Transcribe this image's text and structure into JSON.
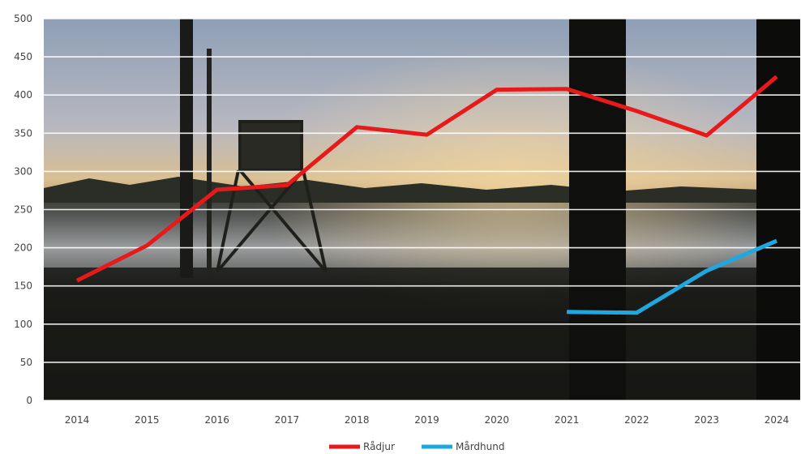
{
  "chart_data": {
    "type": "line",
    "title": "",
    "xlabel": "",
    "ylabel": "",
    "categories": [
      "2014",
      "2015",
      "2016",
      "2017",
      "2018",
      "2019",
      "2020",
      "2021",
      "2022",
      "2023",
      "2024"
    ],
    "ylim": [
      0,
      500
    ],
    "yticks": [
      0,
      50,
      100,
      150,
      200,
      250,
      300,
      350,
      400,
      450,
      500
    ],
    "grid": true,
    "legend_position": "bottom",
    "background": "photograph of a misty forest clearing at dusk with a hunting tower",
    "series": [
      {
        "name": "Rådjur",
        "color": "#e8191b",
        "values": [
          157,
          203,
          276,
          282,
          358,
          348,
          407,
          408,
          379,
          347,
          424
        ]
      },
      {
        "name": "Mårdhund",
        "color": "#1fa8e0",
        "values": [
          null,
          null,
          null,
          null,
          null,
          null,
          null,
          116,
          115,
          170,
          209
        ]
      }
    ]
  }
}
